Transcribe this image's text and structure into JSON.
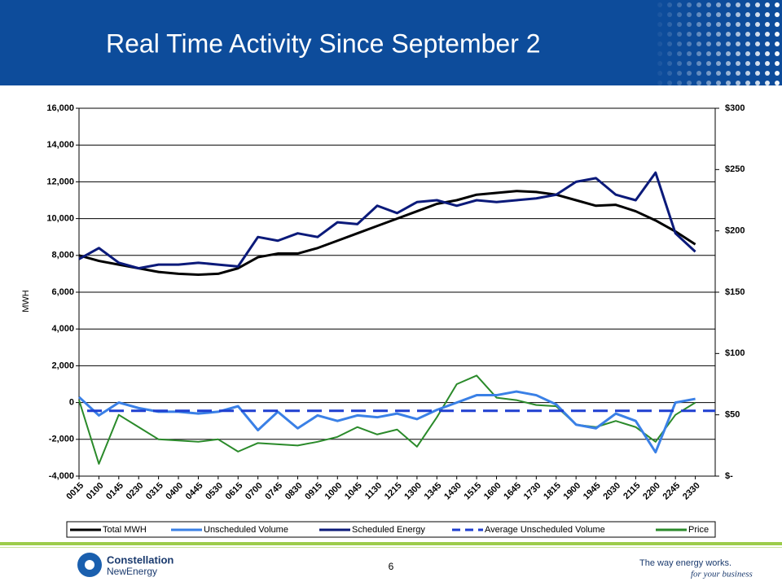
{
  "header": {
    "title": "Real Time Activity Since September 2"
  },
  "chart_data": {
    "type": "line",
    "y_label": "MWH",
    "categories": [
      "0015",
      "0100",
      "0145",
      "0230",
      "0315",
      "0400",
      "0445",
      "0530",
      "0615",
      "0700",
      "0745",
      "0830",
      "0915",
      "1000",
      "1045",
      "1130",
      "1215",
      "1300",
      "1345",
      "1430",
      "1515",
      "1600",
      "1645",
      "1730",
      "1815",
      "1900",
      "1945",
      "2030",
      "2115",
      "2200",
      "2245",
      "2330"
    ],
    "ylim": [
      -4000,
      16000
    ],
    "yticks": [
      {
        "value": -4000,
        "label": "-4,000"
      },
      {
        "value": -2000,
        "label": "-2,000"
      },
      0,
      {
        "value": 2000,
        "label": "2,000"
      },
      {
        "value": 4000,
        "label": "4,000"
      },
      {
        "value": 6000,
        "label": "6,000"
      },
      {
        "value": 8000,
        "label": "8,000"
      },
      {
        "value": 10000,
        "label": "10,000"
      },
      {
        "value": 12000,
        "label": "12,000"
      },
      {
        "value": 14000,
        "label": "14,000"
      },
      {
        "value": 16000,
        "label": "16,000"
      }
    ],
    "y2lim": [
      0,
      300
    ],
    "y2ticks": [
      {
        "value": 0,
        "label": "$-"
      },
      {
        "value": 50,
        "label": "$50"
      },
      {
        "value": 100,
        "label": "$100"
      },
      {
        "value": 150,
        "label": "$150"
      },
      {
        "value": 200,
        "label": "$200"
      },
      {
        "value": 250,
        "label": "$250"
      },
      {
        "value": 300,
        "label": "$300"
      }
    ],
    "grid": true,
    "legend": "bottom",
    "series": [
      {
        "name": "Total MWH",
        "color": "#000000",
        "values": [
          8000,
          7700,
          7500,
          7300,
          7100,
          7000,
          6950,
          7000,
          7300,
          7900,
          8100,
          8100,
          8400,
          8800,
          9200,
          9600,
          10000,
          10400,
          10800,
          11000,
          11300,
          11400,
          11500,
          11450,
          11300,
          11000,
          10700,
          10750,
          10400,
          9900,
          9300,
          8600
        ]
      },
      {
        "name": "Unscheduled Volume",
        "color": "#3a80e6",
        "values": [
          300,
          -700,
          0,
          -300,
          -500,
          -500,
          -600,
          -500,
          -200,
          -1500,
          -500,
          -1400,
          -700,
          -1000,
          -700,
          -800,
          -600,
          -900,
          -400,
          0,
          400,
          400,
          600,
          400,
          -100,
          -1200,
          -1400,
          -600,
          -1000,
          -2700,
          0,
          200
        ]
      },
      {
        "name": "Scheduled Energy",
        "color": "#0b1a7a",
        "values": [
          7800,
          8400,
          7600,
          7300,
          7500,
          7500,
          7600,
          7500,
          7400,
          9000,
          8800,
          9200,
          9000,
          9800,
          9700,
          10700,
          10300,
          10900,
          11000,
          10700,
          11000,
          10900,
          11000,
          11100,
          11300,
          12000,
          12200,
          11300,
          11000,
          12500,
          9200,
          8200
        ]
      },
      {
        "name": "Average Unscheduled Volume",
        "color": "#1f3fd0",
        "dashed": true,
        "value": -450
      },
      {
        "name": "Price",
        "color": "#2a8a2a",
        "axis": "y2",
        "values": [
          62,
          10,
          50,
          40,
          30,
          29,
          28,
          30,
          20,
          27,
          26,
          25,
          28,
          32,
          40,
          34,
          38,
          24,
          48,
          75,
          82,
          64,
          62,
          58,
          57,
          42,
          40,
          45,
          40,
          28,
          50,
          60
        ]
      }
    ]
  },
  "footer": {
    "logo_top": "Constellation",
    "logo_bottom": "NewEnergy",
    "page": "6",
    "tagline": "The way energy works.",
    "tagline_script": "for your business"
  }
}
